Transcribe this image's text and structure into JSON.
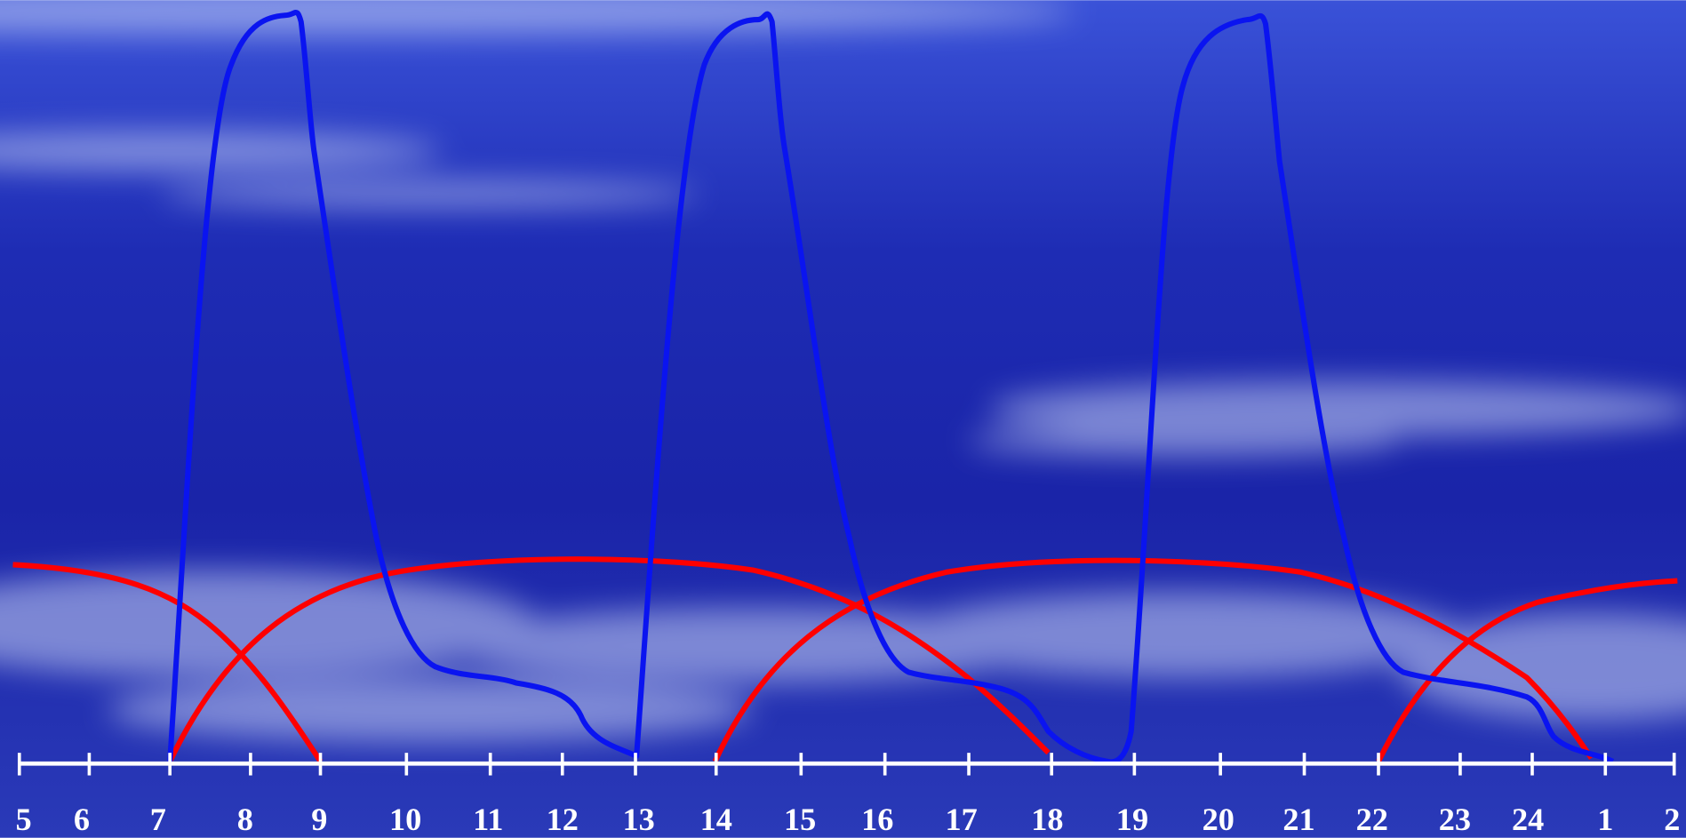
{
  "axis": {
    "labels": [
      5,
      6,
      7,
      8,
      9,
      10,
      11,
      12,
      13,
      14,
      15,
      16,
      17,
      18,
      19,
      20,
      21,
      22,
      23,
      24,
      1,
      2
    ]
  }
}
